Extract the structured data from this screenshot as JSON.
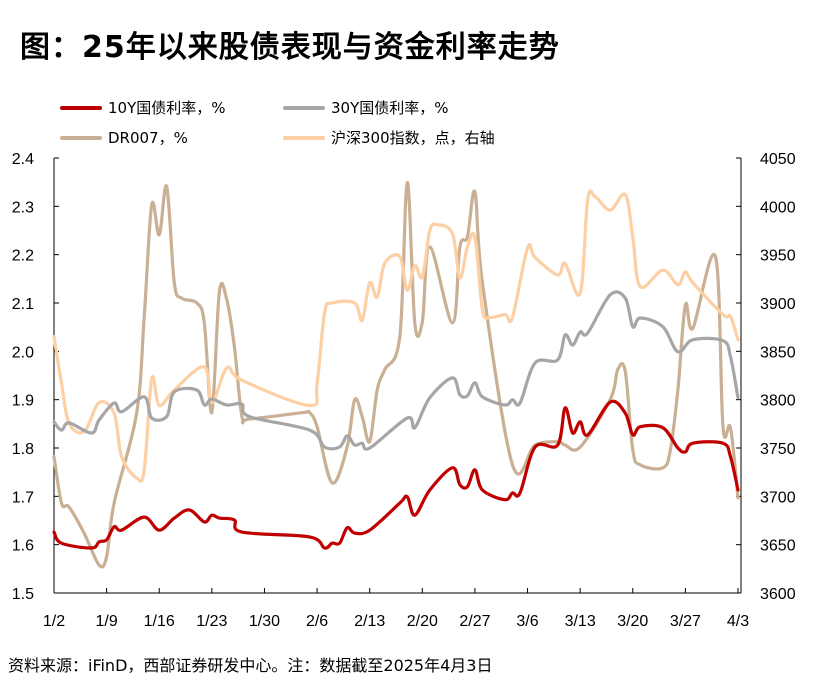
{
  "title": "图：25年以来股债表现与资金利率走势",
  "footer": "资料来源：iFinD，西部证券研发中心。注：数据截至2025年4月3日",
  "chart_data": {
    "type": "line",
    "title": "图：25年以来股债表现与资金利率走势",
    "year": 2025,
    "x_ticks": [
      "1/2",
      "1/9",
      "1/16",
      "1/23",
      "1/30",
      "2/6",
      "2/13",
      "2/20",
      "2/27",
      "3/6",
      "3/13",
      "3/20",
      "3/27",
      "4/3"
    ],
    "y_left": {
      "lim": [
        1.5,
        2.4
      ],
      "ticks": [
        "1.5",
        "1.6",
        "1.7",
        "1.8",
        "1.9",
        "2.0",
        "2.1",
        "2.2",
        "2.3",
        "2.4"
      ]
    },
    "y_right": {
      "lim": [
        3600,
        4050
      ],
      "ticks": [
        "3600",
        "3650",
        "3700",
        "3750",
        "3800",
        "3850",
        "3900",
        "3950",
        "4000",
        "4050"
      ]
    },
    "grid": false,
    "legend_position": "top",
    "series": [
      {
        "name": "10Y国债利率，%",
        "axis": "left",
        "color": "#C00000",
        "width": 3.2,
        "points": [
          [
            "1/2",
            1.626
          ],
          [
            "1/3",
            1.603
          ],
          [
            "1/7",
            1.593
          ],
          [
            "1/8",
            1.606
          ],
          [
            "1/9",
            1.61
          ],
          [
            "1/10",
            1.637
          ],
          [
            "1/11",
            1.63
          ],
          [
            "1/14",
            1.657
          ],
          [
            "1/16",
            1.63
          ],
          [
            "1/18",
            1.655
          ],
          [
            "1/20",
            1.672
          ],
          [
            "1/22",
            1.647
          ],
          [
            "1/23",
            1.661
          ],
          [
            "1/24",
            1.655
          ],
          [
            "1/26",
            1.651
          ],
          [
            "1/27",
            1.626
          ],
          [
            "2/5",
            1.616
          ],
          [
            "2/7",
            1.593
          ],
          [
            "2/8",
            1.603
          ],
          [
            "2/9",
            1.603
          ],
          [
            "2/10",
            1.635
          ],
          [
            "2/11",
            1.624
          ],
          [
            "2/13",
            1.63
          ],
          [
            "2/17",
            1.686
          ],
          [
            "2/18",
            1.699
          ],
          [
            "2/19",
            1.661
          ],
          [
            "2/21",
            1.713
          ],
          [
            "2/24",
            1.759
          ],
          [
            "2/25",
            1.724
          ],
          [
            "2/26",
            1.72
          ],
          [
            "2/27",
            1.755
          ],
          [
            "2/28",
            1.713
          ],
          [
            "3/3",
            1.693
          ],
          [
            "3/4",
            1.707
          ],
          [
            "3/5",
            1.707
          ],
          [
            "3/7",
            1.802
          ],
          [
            "3/10",
            1.806
          ],
          [
            "3/11",
            1.883
          ],
          [
            "3/12",
            1.831
          ],
          [
            "3/13",
            1.854
          ],
          [
            "3/14",
            1.827
          ],
          [
            "3/17",
            1.895
          ],
          [
            "3/19",
            1.872
          ],
          [
            "3/20",
            1.827
          ],
          [
            "3/21",
            1.844
          ],
          [
            "3/24",
            1.842
          ],
          [
            "3/26",
            1.8
          ],
          [
            "3/27",
            1.792
          ],
          [
            "3/28",
            1.81
          ],
          [
            "4/1",
            1.81
          ],
          [
            "4/2",
            1.782
          ],
          [
            "4/3",
            1.713
          ]
        ]
      },
      {
        "name": "30Y国债利率，%",
        "axis": "left",
        "color": "#A6A6A6",
        "width": 3.2,
        "points": [
          [
            "1/2",
            1.854
          ],
          [
            "1/3",
            1.837
          ],
          [
            "1/4",
            1.852
          ],
          [
            "1/7",
            1.831
          ],
          [
            "1/8",
            1.858
          ],
          [
            "1/10",
            1.893
          ],
          [
            "1/11",
            1.875
          ],
          [
            "1/14",
            1.906
          ],
          [
            "1/15",
            1.862
          ],
          [
            "1/17",
            1.865
          ],
          [
            "1/18",
            1.916
          ],
          [
            "1/21",
            1.92
          ],
          [
            "1/22",
            1.889
          ],
          [
            "1/23",
            1.901
          ],
          [
            "1/25",
            1.889
          ],
          [
            "1/27",
            1.891
          ],
          [
            "1/28",
            1.865
          ],
          [
            "2/5",
            1.837
          ],
          [
            "2/7",
            1.802
          ],
          [
            "2/9",
            1.802
          ],
          [
            "2/10",
            1.825
          ],
          [
            "2/11",
            1.806
          ],
          [
            "2/12",
            1.81
          ],
          [
            "2/13",
            1.8
          ],
          [
            "2/18",
            1.862
          ],
          [
            "2/19",
            1.842
          ],
          [
            "2/21",
            1.904
          ],
          [
            "2/24",
            1.945
          ],
          [
            "2/25",
            1.91
          ],
          [
            "2/26",
            1.908
          ],
          [
            "2/27",
            1.935
          ],
          [
            "2/28",
            1.906
          ],
          [
            "3/3",
            1.889
          ],
          [
            "3/4",
            1.9
          ],
          [
            "3/5",
            1.893
          ],
          [
            "3/7",
            1.976
          ],
          [
            "3/10",
            1.982
          ],
          [
            "3/11",
            2.034
          ],
          [
            "3/12",
            2.013
          ],
          [
            "3/13",
            2.04
          ],
          [
            "3/14",
            2.038
          ],
          [
            "3/17",
            2.117
          ],
          [
            "3/19",
            2.11
          ],
          [
            "3/20",
            2.051
          ],
          [
            "3/21",
            2.069
          ],
          [
            "3/24",
            2.051
          ],
          [
            "3/26",
            1.999
          ],
          [
            "3/28",
            2.024
          ],
          [
            "4/1",
            2.022
          ],
          [
            "4/2",
            1.989
          ],
          [
            "4/3",
            1.904
          ]
        ]
      },
      {
        "name": "DR007，%",
        "axis": "left",
        "color": "#C9B094",
        "width": 3.2,
        "points": [
          [
            "1/2",
            1.782
          ],
          [
            "1/3",
            1.686
          ],
          [
            "1/4",
            1.678
          ],
          [
            "1/6",
            1.624
          ],
          [
            "1/8",
            1.558
          ],
          [
            "1/9",
            1.575
          ],
          [
            "1/10",
            1.686
          ],
          [
            "1/13",
            1.873
          ],
          [
            "1/14",
            2.071
          ],
          [
            "1/15",
            2.303
          ],
          [
            "1/16",
            2.241
          ],
          [
            "1/17",
            2.341
          ],
          [
            "1/18",
            2.142
          ],
          [
            "1/19",
            2.11
          ],
          [
            "1/21",
            2.1
          ],
          [
            "1/22",
            2.059
          ],
          [
            "1/23",
            1.873
          ],
          [
            "1/24",
            2.123
          ],
          [
            "1/25",
            2.106
          ],
          [
            "1/26",
            2.009
          ],
          [
            "1/27",
            1.865
          ],
          [
            "1/28",
            1.86
          ],
          [
            "2/4",
            1.873
          ],
          [
            "2/5",
            1.873
          ],
          [
            "2/6",
            1.844
          ],
          [
            "2/8",
            1.728
          ],
          [
            "2/10",
            1.802
          ],
          [
            "2/11",
            1.9
          ],
          [
            "2/12",
            1.865
          ],
          [
            "2/13",
            1.813
          ],
          [
            "2/14",
            1.92
          ],
          [
            "2/15",
            1.962
          ],
          [
            "2/17",
            2.03
          ],
          [
            "2/18",
            2.349
          ],
          [
            "2/19",
            2.059
          ],
          [
            "2/20",
            2.061
          ],
          [
            "2/21",
            2.216
          ],
          [
            "2/24",
            2.059
          ],
          [
            "2/25",
            2.216
          ],
          [
            "2/26",
            2.237
          ],
          [
            "2/27",
            2.33
          ],
          [
            "2/28",
            2.142
          ],
          [
            "3/4",
            1.765
          ],
          [
            "3/7",
            1.806
          ],
          [
            "3/10",
            1.813
          ],
          [
            "3/11",
            1.806
          ],
          [
            "3/13",
            1.802
          ],
          [
            "3/17",
            1.9
          ],
          [
            "3/18",
            1.962
          ],
          [
            "3/19",
            1.958
          ],
          [
            "3/20",
            1.796
          ],
          [
            "3/21",
            1.765
          ],
          [
            "3/24",
            1.759
          ],
          [
            "3/25",
            1.796
          ],
          [
            "3/26",
            1.92
          ],
          [
            "3/27",
            2.096
          ],
          [
            "3/28",
            2.048
          ],
          [
            "3/31",
            2.196
          ],
          [
            "4/1",
            1.844
          ],
          [
            "4/2",
            1.842
          ],
          [
            "4/3",
            1.697
          ]
        ]
      },
      {
        "name": "沪深300指数，点，右轴",
        "axis": "right",
        "color": "#FDCFA5",
        "width": 3.2,
        "points": [
          [
            "1/2",
            3865
          ],
          [
            "1/3",
            3817
          ],
          [
            "1/4",
            3776
          ],
          [
            "1/6",
            3767
          ],
          [
            "1/8",
            3797
          ],
          [
            "1/10",
            3786
          ],
          [
            "1/11",
            3741
          ],
          [
            "1/13",
            3719
          ],
          [
            "1/14",
            3727
          ],
          [
            "1/15",
            3822
          ],
          [
            "1/16",
            3794
          ],
          [
            "1/18",
            3810
          ],
          [
            "1/22",
            3834
          ],
          [
            "1/23",
            3797
          ],
          [
            "1/25",
            3833
          ],
          [
            "1/27",
            3820
          ],
          [
            "2/5",
            3794
          ],
          [
            "2/6",
            3817
          ],
          [
            "2/7",
            3890
          ],
          [
            "2/8",
            3900
          ],
          [
            "2/11",
            3900
          ],
          [
            "2/12",
            3882
          ],
          [
            "2/13",
            3921
          ],
          [
            "2/14",
            3906
          ],
          [
            "2/15",
            3941
          ],
          [
            "2/17",
            3948
          ],
          [
            "2/18",
            3913
          ],
          [
            "2/19",
            3939
          ],
          [
            "2/20",
            3927
          ],
          [
            "2/21",
            3975
          ],
          [
            "2/22",
            3981
          ],
          [
            "2/24",
            3972
          ],
          [
            "2/25",
            3926
          ],
          [
            "2/26",
            3958
          ],
          [
            "2/27",
            3968
          ],
          [
            "2/28",
            3893
          ],
          [
            "3/1",
            3885
          ],
          [
            "3/3",
            3888
          ],
          [
            "3/4",
            3885
          ],
          [
            "3/6",
            3957
          ],
          [
            "3/7",
            3947
          ],
          [
            "3/10",
            3929
          ],
          [
            "3/11",
            3941
          ],
          [
            "3/13",
            3910
          ],
          [
            "3/14",
            4007
          ],
          [
            "3/15",
            4010
          ],
          [
            "3/17",
            3996
          ],
          [
            "3/19",
            4012
          ],
          [
            "3/20",
            3968
          ],
          [
            "3/21",
            3917
          ],
          [
            "3/24",
            3934
          ],
          [
            "3/26",
            3919
          ],
          [
            "3/27",
            3932
          ],
          [
            "3/28",
            3921
          ],
          [
            "4/1",
            3888
          ],
          [
            "4/2",
            3886
          ],
          [
            "4/3",
            3862
          ]
        ]
      }
    ]
  }
}
